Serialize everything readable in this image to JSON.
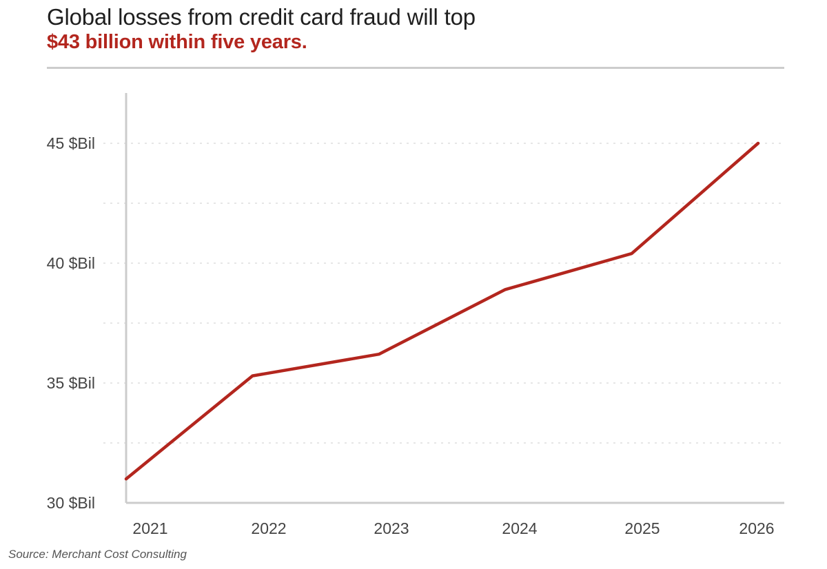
{
  "colors": {
    "title_text": "#1f1f1f",
    "accent": "#b3261e",
    "rule": "#cccccc",
    "axis": "#cccccc",
    "grid": "#dddddd",
    "tick_text": "#444444",
    "source_text": "#555555"
  },
  "source": "Source: Merchant Cost Consulting",
  "chart_data": {
    "type": "line",
    "title": "Global losses from credit card fraud will top",
    "subtitle": "$43 billion within five years.",
    "xlabel": "",
    "ylabel": "",
    "categories": [
      "2021",
      "2022",
      "2023",
      "2024",
      "2025",
      "2026"
    ],
    "series": [
      {
        "values": [
          31.0,
          35.3,
          36.2,
          38.9,
          40.4,
          45.0
        ]
      }
    ],
    "yticks": [
      {
        "value": 30,
        "label": "30 $Bil"
      },
      {
        "value": 35,
        "label": "35 $Bil"
      },
      {
        "value": 40,
        "label": "40 $Bil"
      },
      {
        "value": 45,
        "label": "45 $Bil"
      }
    ],
    "minor_grid": [
      32.5,
      37.5,
      42.5
    ],
    "ylim": [
      30,
      47
    ],
    "grid": true,
    "legend": "none"
  }
}
